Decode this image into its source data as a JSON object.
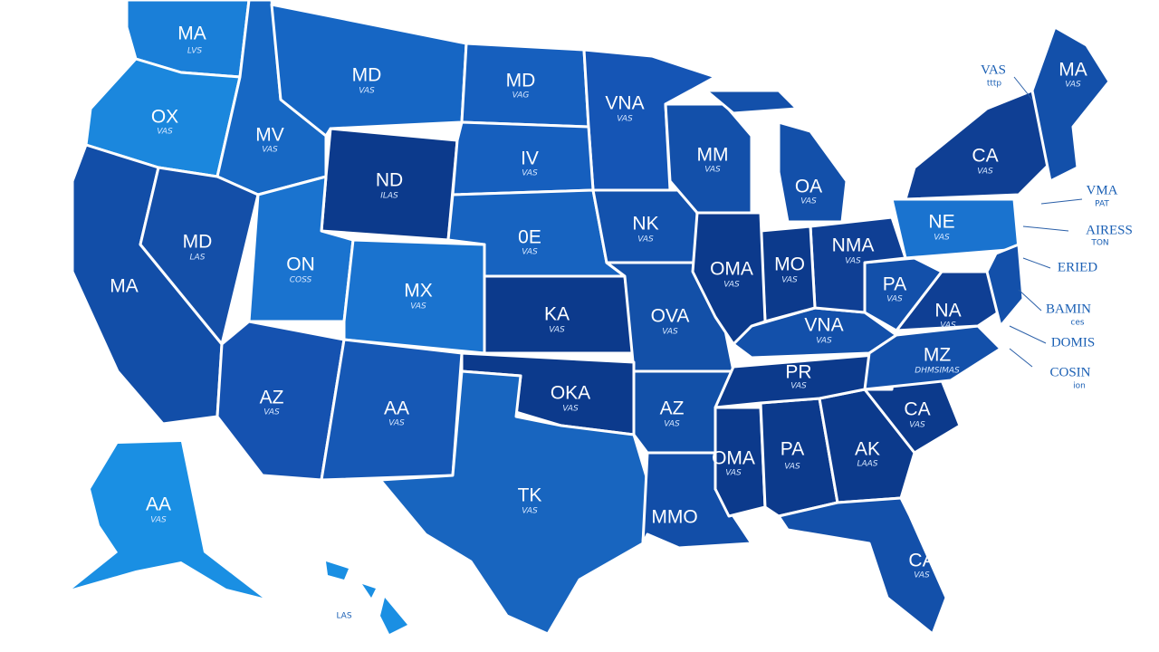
{
  "states": [
    {
      "label": "MA",
      "sublabel": "LVS"
    },
    {
      "label": "OX",
      "sublabel": "VAS"
    },
    {
      "label": "MV",
      "sublabel": "VAS"
    },
    {
      "label": "MD",
      "sublabel": "VAS"
    },
    {
      "label": "MD",
      "sublabel": "VAG"
    },
    {
      "label": "VNA",
      "sublabel": "VAS"
    },
    {
      "label": "ND",
      "sublabel": "ILAS"
    },
    {
      "label": "IV",
      "sublabel": "VAS"
    },
    {
      "label": "0E",
      "sublabel": "VAS"
    },
    {
      "label": "NK",
      "sublabel": "VAS"
    },
    {
      "label": "MA"
    },
    {
      "label": "MD",
      "sublabel": "LAS"
    },
    {
      "label": "ON",
      "sublabel": "COSS"
    },
    {
      "label": "MX",
      "sublabel": "VAS"
    },
    {
      "label": "KA",
      "sublabel": "VAS"
    },
    {
      "label": "OVA",
      "sublabel": "VAS"
    },
    {
      "label": "AZ",
      "sublabel": "VAS"
    },
    {
      "label": "AA",
      "sublabel": "VAS"
    },
    {
      "label": "OKA",
      "sublabel": "VAS"
    },
    {
      "label": "TK",
      "sublabel": "VAS"
    },
    {
      "label": "AZ",
      "sublabel": "VAS"
    },
    {
      "label": "MMO"
    },
    {
      "label": "OMA",
      "sublabel": "VAS"
    },
    {
      "label": "PA",
      "sublabel": "VAS"
    },
    {
      "label": "AK",
      "sublabel": "LAAS"
    },
    {
      "label": "CA",
      "sublabel": "VAS"
    },
    {
      "label": "CA",
      "sublabel": "VAS"
    },
    {
      "label": "PR",
      "sublabel": "VAS"
    },
    {
      "label": "VNA",
      "sublabel": "VAS"
    },
    {
      "label": "MZ",
      "sublabel": "DHMSIMAS"
    },
    {
      "label": "NA",
      "sublabel": "VAS"
    },
    {
      "label": "PA",
      "sublabel": "VAS"
    },
    {
      "label": "NMA",
      "sublabel": "VAS"
    },
    {
      "label": "MO",
      "sublabel": "VAS"
    },
    {
      "label": "OMA",
      "sublabel": "VAS"
    },
    {
      "label": "MM",
      "sublabel": "VAS"
    },
    {
      "label": "OA",
      "sublabel": "VAS"
    },
    {
      "label": "NE",
      "sublabel": "VAS"
    },
    {
      "label": "CA",
      "sublabel": "VAS"
    },
    {
      "label": "MA",
      "sublabel": "VAS"
    },
    {
      "label": "AA",
      "sublabel": "VAS"
    },
    {
      "label": "LAS"
    }
  ],
  "callouts": [
    {
      "label": "VAS",
      "sublabel": "tttp"
    },
    {
      "label": "VMA",
      "sublabel": "PAT"
    },
    {
      "label": "AIRESS",
      "sublabel": "TON"
    },
    {
      "label": "ERIED"
    },
    {
      "label": "BAMIN",
      "sublabel": "ces"
    },
    {
      "label": "DOMIS"
    },
    {
      "label": "COSIN",
      "sublabel": "ion"
    }
  ]
}
